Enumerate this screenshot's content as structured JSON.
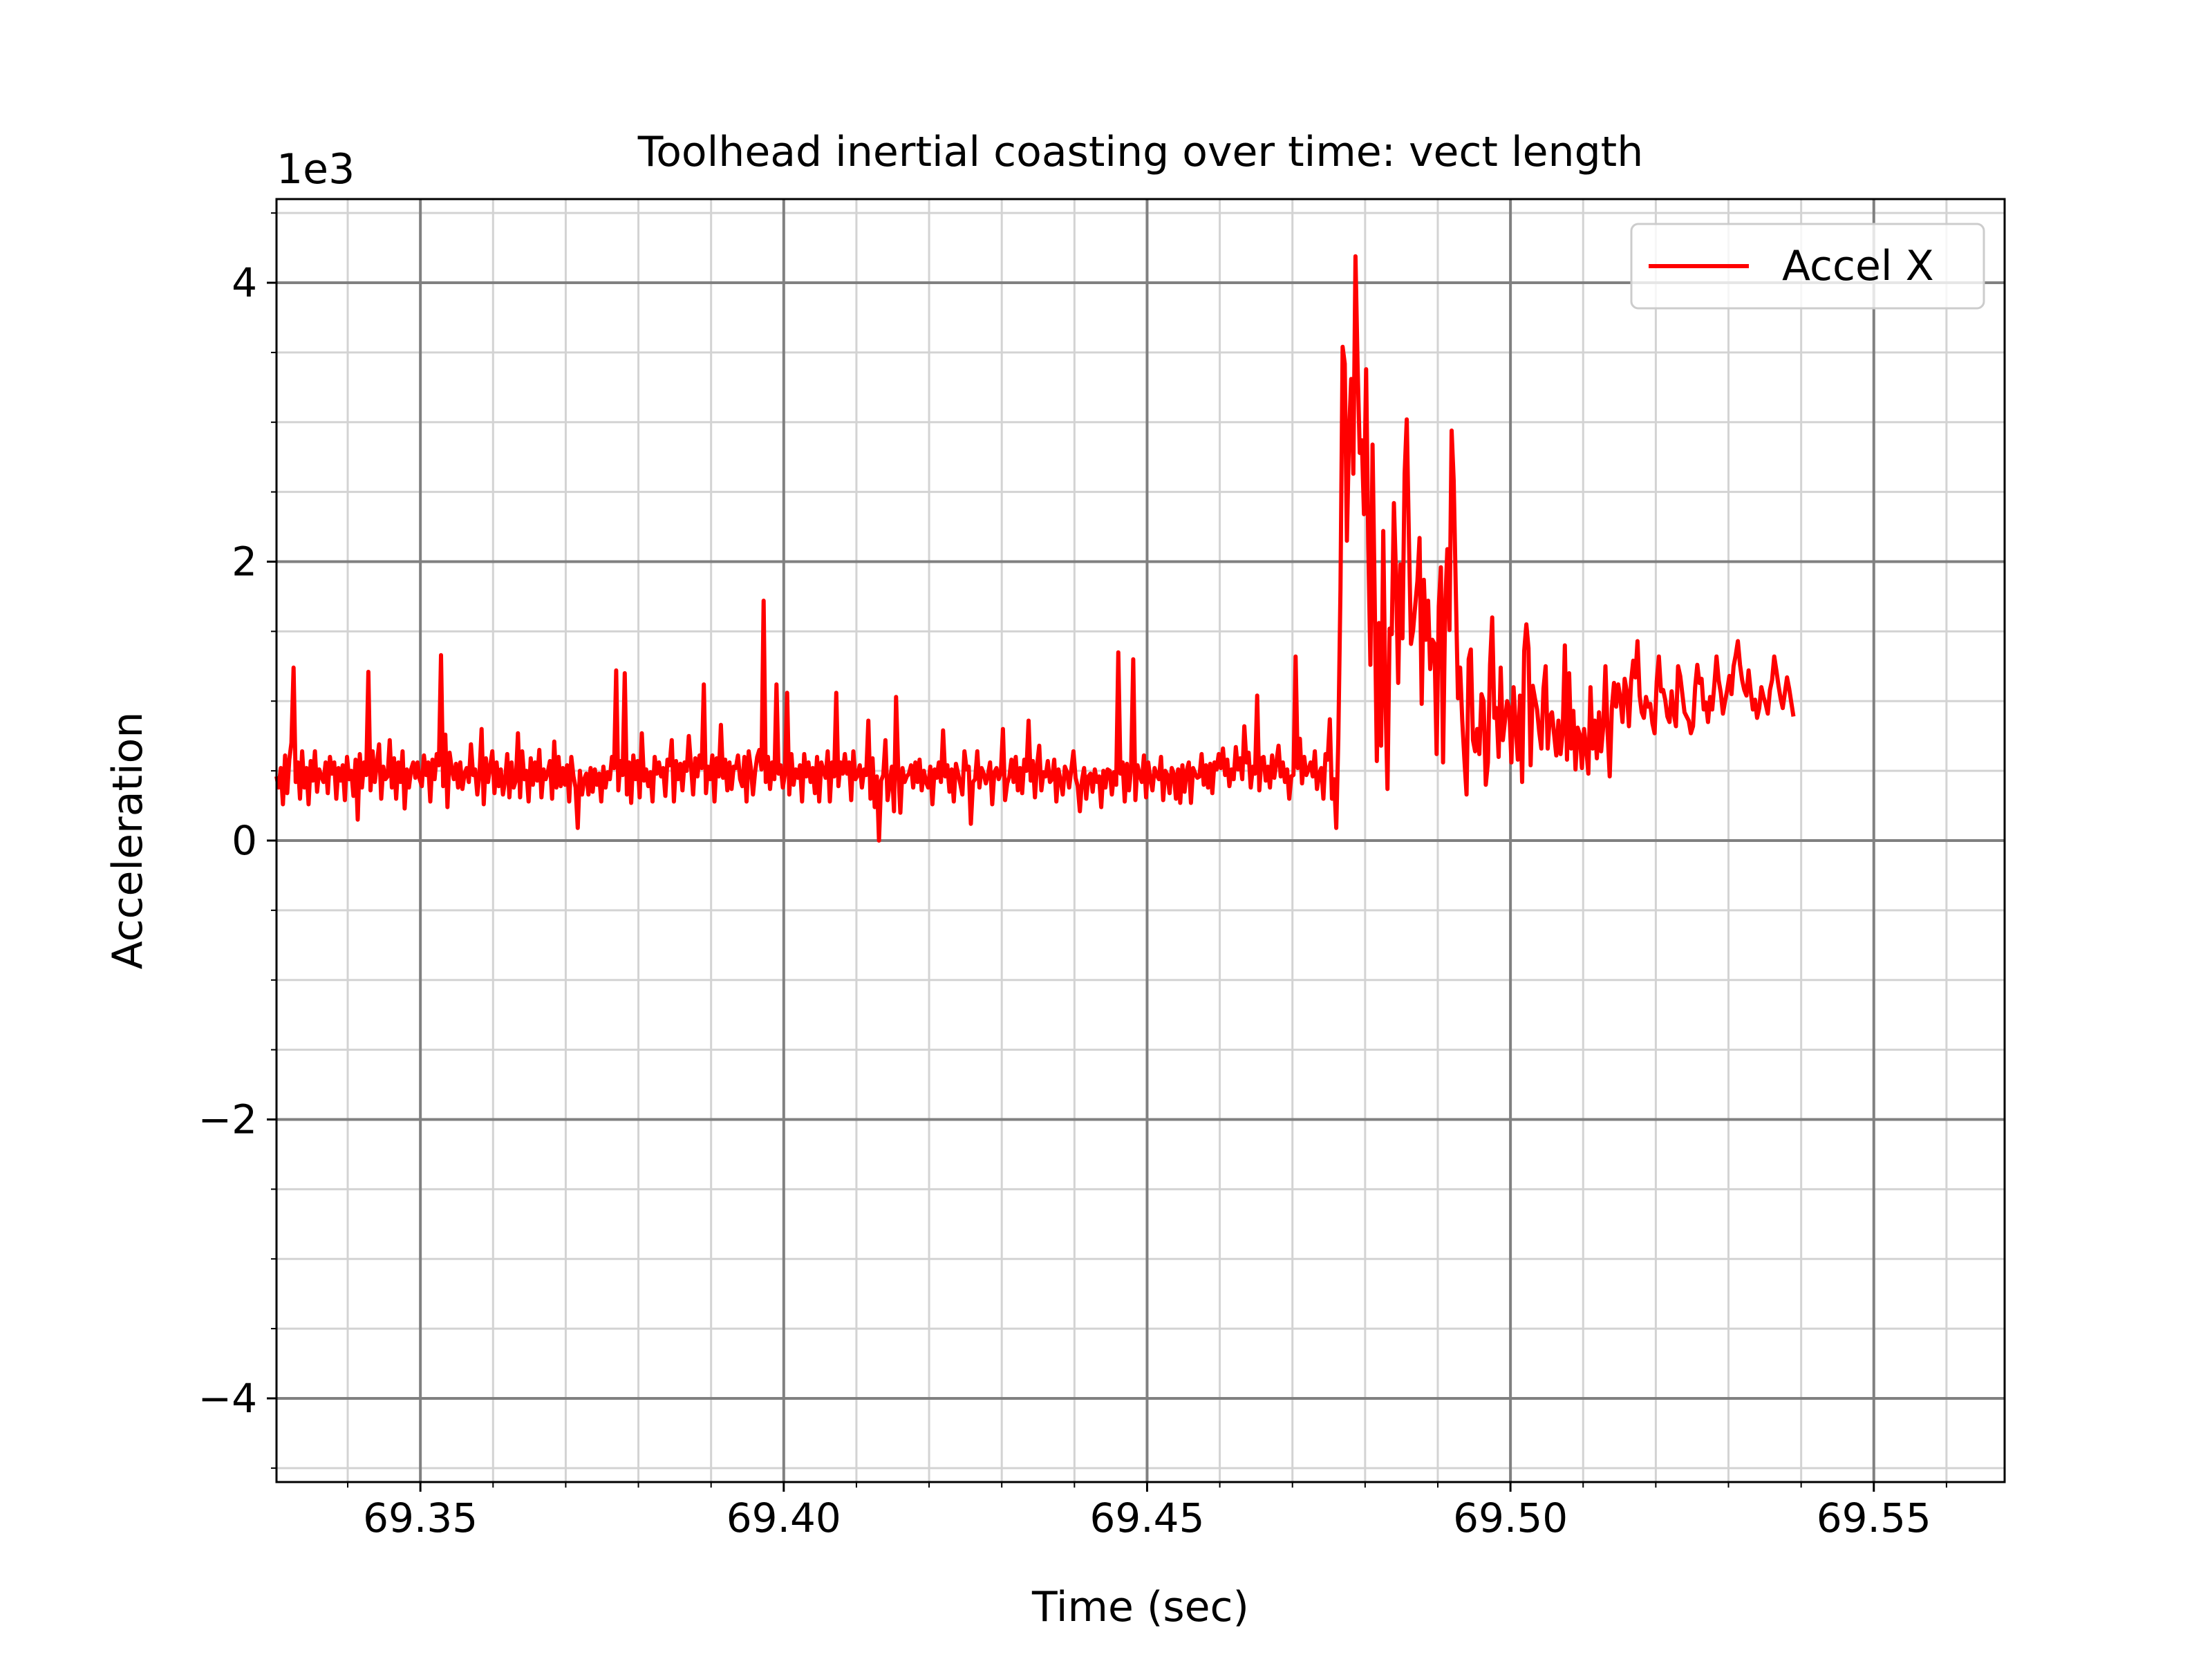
{
  "chart_data": {
    "type": "line",
    "title": "Toolhead inertial coasting over time: vect length",
    "xlabel": "Time (sec)",
    "ylabel": "Acceleration",
    "y_offset_label": "1e3",
    "y_scale_factor": 1000,
    "xlim": [
      69.3302,
      69.568
    ],
    "ylim": [
      -4600,
      4600
    ],
    "x_major_ticks": [
      69.35,
      69.4,
      69.45,
      69.5,
      69.55
    ],
    "x_tick_labels": [
      "69.35",
      "69.40",
      "69.45",
      "69.50",
      "69.55"
    ],
    "x_minor_step": 0.01,
    "y_major_ticks": [
      -4000,
      -2000,
      0,
      2000,
      4000
    ],
    "y_tick_labels": [
      "−4",
      "−2",
      "0",
      "2",
      "4"
    ],
    "y_minor_step": 500,
    "grid": true,
    "legend_position": "top-right",
    "series": [
      {
        "name": "Accel X",
        "color": "#ff0000",
        "x_start": 69.3302,
        "x_step": 0.000294,
        "values": [
          460,
          380,
          520,
          260,
          610,
          340,
          580,
          700,
          1240,
          420,
          560,
          300,
          640,
          380,
          520,
          260,
          570,
          430,
          640,
          350,
          510,
          460,
          420,
          560,
          340,
          600,
          480,
          560,
          300,
          520,
          430,
          540,
          290,
          600,
          440,
          500,
          320,
          580,
          150,
          620,
          380,
          560,
          470,
          1210,
          360,
          640,
          420,
          550,
          690,
          300,
          530,
          440,
          460,
          720,
          380,
          590,
          300,
          560,
          420,
          640,
          230,
          510,
          380,
          510,
          560,
          450,
          560,
          440,
          390,
          610,
          470,
          560,
          280,
          580,
          440,
          620,
          540,
          1330,
          390,
          760,
          240,
          630,
          520,
          440,
          550,
          380,
          560,
          370,
          480,
          520,
          420,
          690,
          470,
          510,
          330,
          470,
          800,
          260,
          590,
          420,
          530,
          640,
          340,
          560,
          390,
          510,
          330,
          430,
          620,
          310,
          560,
          380,
          430,
          770,
          310,
          640,
          440,
          500,
          280,
          590,
          400,
          560,
          430,
          650,
          310,
          510,
          440,
          490,
          570,
          300,
          710,
          380,
          600,
          390,
          520,
          400,
          540,
          280,
          600,
          460,
          380,
          90,
          500,
          330,
          440,
          480,
          330,
          520,
          350,
          510,
          400,
          480,
          280,
          530,
          380,
          490,
          440,
          600,
          520,
          1220,
          360,
          570,
          470,
          1200,
          330,
          560,
          270,
          610,
          440,
          570,
          310,
          770,
          430,
          510,
          390,
          490,
          280,
          600,
          480,
          560,
          460,
          520,
          320,
          580,
          540,
          720,
          280,
          570,
          440,
          550,
          360,
          560,
          500,
          750,
          540,
          330,
          590,
          460,
          610,
          520,
          1120,
          340,
          530,
          440,
          610,
          280,
          590,
          460,
          830,
          450,
          580,
          360,
          560,
          370,
          530,
          520,
          610,
          440,
          390,
          600,
          280,
          640,
          520,
          330,
          490,
          600,
          650,
          510,
          1720,
          420,
          600,
          370,
          560,
          440,
          1120,
          480,
          540,
          380,
          480,
          1060,
          330,
          620,
          400,
          510,
          450,
          540,
          280,
          620,
          460,
          560,
          420,
          520,
          340,
          600,
          280,
          560,
          500,
          450,
          640,
          280,
          560,
          460,
          1060,
          390,
          560,
          480,
          620,
          480,
          560,
          290,
          640,
          440,
          470,
          540,
          380,
          510,
          470,
          860,
          300,
          590,
          240,
          460,
          0,
          430,
          470,
          720,
          290,
          410,
          530,
          210,
          1030,
          510,
          200,
          520,
          420,
          460,
          480,
          540,
          380,
          560,
          420,
          580,
          360,
          500,
          420,
          380,
          530,
          260,
          510,
          450,
          560,
          420,
          790,
          460,
          540,
          350,
          510,
          280,
          550,
          480,
          410,
          330,
          640,
          510,
          530,
          120,
          420,
          440,
          640,
          380,
          520,
          480,
          410,
          470,
          560,
          260,
          490,
          520,
          440,
          480,
          800,
          290,
          410,
          460,
          580,
          420,
          600,
          360,
          520,
          340,
          580,
          500,
          860,
          430,
          570,
          310,
          540,
          680,
          360,
          490,
          460,
          570,
          420,
          440,
          580,
          280,
          510,
          430,
          330,
          530,
          490,
          380,
          510,
          640,
          450,
          390,
          210,
          430,
          520,
          300,
          460,
          480,
          350,
          510,
          420,
          460,
          240,
          500,
          380,
          510,
          500,
          330,
          490,
          400,
          1350,
          480,
          560,
          280,
          550,
          360,
          510,
          1300,
          290,
          540,
          470,
          420,
          610,
          310,
          560,
          440,
          360,
          520,
          470,
          440,
          600,
          290,
          500,
          470,
          340,
          520,
          480,
          300,
          510,
          270,
          540,
          350,
          500,
          560,
          270,
          520,
          480,
          450,
          460,
          620,
          400,
          540,
          380,
          550,
          340,
          560,
          510,
          620,
          520,
          660,
          470,
          580,
          390,
          510,
          440,
          670,
          510,
          590,
          440,
          820,
          560,
          630,
          380,
          530,
          480,
          1040,
          360,
          590,
          600,
          430,
          530,
          380,
          610,
          450,
          560,
          680,
          460,
          560,
          420,
          510,
          300,
          460,
          470,
          1320,
          520,
          730,
          410,
          600,
          470,
          510,
          560,
          460,
          640,
          370,
          480,
          520,
          300,
          620,
          580,
          870,
          300,
          440,
          90,
          730,
          1800,
          3540,
          3420,
          2150,
          2920,
          3310,
          2630,
          4190,
          3400,
          2780,
          2870,
          2340,
          3380,
          2130,
          1260,
          2840,
          1740,
          570,
          1560,
          680,
          2220,
          1060,
          370,
          1520,
          1480,
          2420,
          1890,
          1130,
          1980,
          1450,
          2630,
          3020,
          2200,
          1410,
          1510,
          1690,
          1860,
          2170,
          980,
          1870,
          1440,
          1720,
          1230,
          1440,
          1410,
          620,
          1680,
          1960,
          560,
          1690,
          2090,
          1510,
          2940,
          2580,
          1780,
          1020,
          1240,
          860,
          580,
          330,
          1300,
          1370,
          720,
          640,
          800,
          620,
          1050,
          1000,
          400,
          560,
          1260,
          1600,
          880,
          950,
          600,
          1240,
          720,
          860,
          1000,
          950,
          560,
          1100,
          820,
          580,
          1040,
          420,
          1360,
          1550,
          1380,
          540,
          1110,
          1020,
          940,
          780,
          660,
          1090,
          1250,
          660,
          890,
          920,
          760,
          610,
          860,
          620,
          780,
          1400,
          580,
          1200,
          660,
          930,
          510,
          810,
          760,
          520,
          800,
          660,
          480,
          1100,
          660,
          860,
          590,
          920,
          640,
          820,
          1250,
          780,
          460,
          950,
          1130,
          960,
          1120,
          1020,
          850,
          1160,
          1070,
          820,
          1140,
          1290,
          1170,
          1430,
          1040,
          920,
          880,
          1030,
          960,
          980,
          840,
          770,
          1140,
          1320,
          1070,
          1080,
          1010,
          890,
          850,
          1070,
          910,
          820,
          1250,
          1180,
          1050,
          920,
          890,
          860,
          770,
          820,
          1100,
          1260,
          1130,
          1160,
          940,
          990,
          850,
          1030,
          940,
          1120,
          1320,
          1150,
          1060,
          910,
          1000,
          1080,
          1180,
          1050,
          1250,
          1330,
          1430,
          1260,
          1150,
          1080,
          1040,
          1220,
          1070,
          940,
          1010,
          880,
          950,
          1100,
          1030,
          980,
          910,
          1080,
          1150,
          1320,
          1220,
          1110,
          1020,
          950,
          1060,
          1170,
          1090,
          990,
          890
        ]
      }
    ]
  }
}
